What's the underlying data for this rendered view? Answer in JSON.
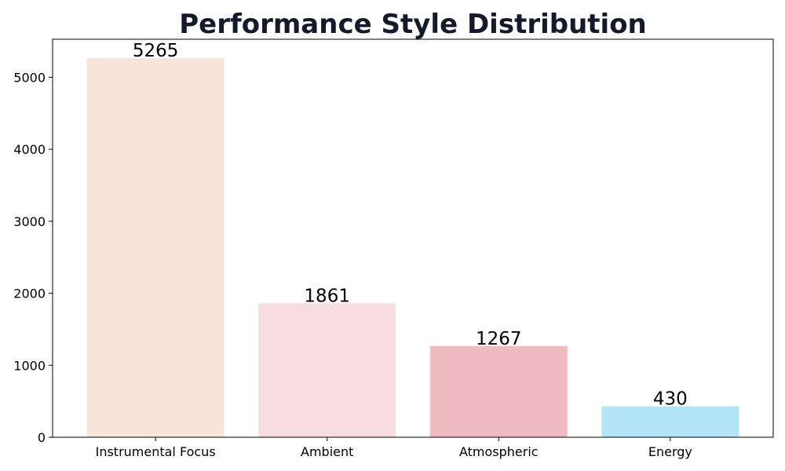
{
  "chart_data": {
    "type": "bar",
    "title": "Performance Style Distribution",
    "xlabel": "",
    "ylabel": "",
    "categories": [
      "Instrumental Focus",
      "Ambient",
      "Atmospheric",
      "Energy"
    ],
    "values": [
      5265,
      1861,
      1267,
      430
    ],
    "data_labels": [
      "5265",
      "1861",
      "1267",
      "430"
    ],
    "colors": [
      "#f8e4d8",
      "#f8dce0",
      "#f0bac1",
      "#b3e4f8"
    ],
    "ylim": [
      0,
      5528
    ],
    "yticks": [
      0,
      1000,
      2000,
      3000,
      4000,
      5000
    ],
    "grid": false,
    "legend": "none"
  }
}
